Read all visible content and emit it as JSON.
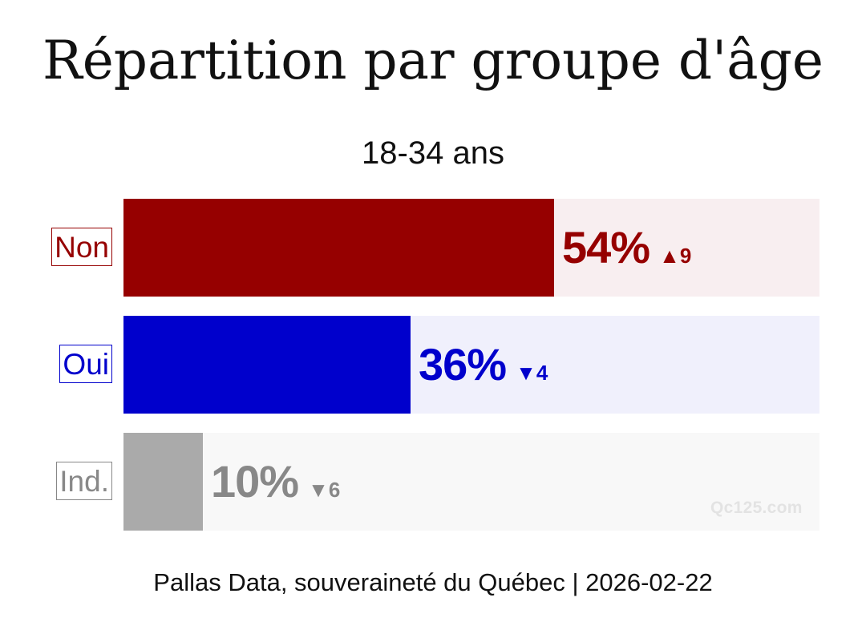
{
  "chart_data": {
    "type": "bar",
    "title": "Répartition par groupe d'âge",
    "subtitle": "18-34 ans",
    "categories": [
      "Non",
      "Oui",
      "Ind."
    ],
    "values": [
      54,
      36,
      10
    ],
    "value_labels": [
      "54%",
      "36%",
      "10%"
    ],
    "changes": [
      "▲9",
      "▼4",
      "▼6"
    ],
    "colors": [
      "#960000",
      "#0000CC",
      "#AAAAAA"
    ],
    "track_colors": [
      "#F8EEF0",
      "#F0F0FC",
      "#F8F8F8"
    ],
    "label_colors": [
      "#960000",
      "#0000CC",
      "#888888"
    ],
    "xlim": [
      0,
      100
    ],
    "grid": false,
    "legend": "none"
  },
  "footer": "Pallas Data, souveraineté du Québec | 2026-02-22",
  "watermark": "Qc125.com"
}
